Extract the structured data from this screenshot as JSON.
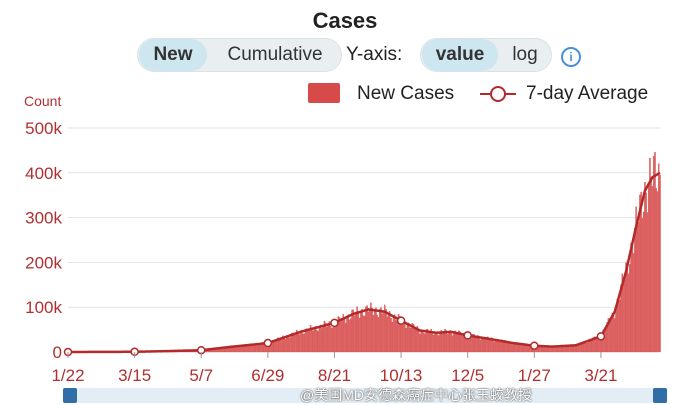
{
  "header": {
    "title": "Cases"
  },
  "controls": {
    "mode_options": [
      "New",
      "Cumulative"
    ],
    "mode_selected": "New",
    "yaxis_label": "Y-axis:",
    "scale_options": [
      "value",
      "log"
    ],
    "scale_selected": "value",
    "info_icon": "info-icon"
  },
  "legend": {
    "bar_label": "New Cases",
    "line_label": "7-day Average"
  },
  "colors": {
    "bar": "#e06666",
    "bar_edge": "#c94040",
    "line": "#b22a2a",
    "axis_text": "#b03030",
    "grid": "#e3e3e3"
  },
  "watermark": "@美国MD安德森癌症中心张玉蛟教授",
  "chart_data": {
    "type": "bar",
    "title": "Cases",
    "ylabel": "Count",
    "ylim": [
      0,
      500000
    ],
    "yticks": [
      0,
      100000,
      200000,
      300000,
      400000,
      500000
    ],
    "ytick_labels": [
      "0",
      "100k",
      "200k",
      "300k",
      "400k",
      "500k"
    ],
    "xtick_labels": [
      "1/22",
      "3/15",
      "5/7",
      "6/29",
      "8/21",
      "10/13",
      "12/5",
      "1/27",
      "3/21"
    ],
    "grid": true,
    "legend_position": "top-right",
    "x_start": "2020-01-22",
    "x_end": "2021-05-07",
    "series": [
      {
        "name": "7-day Average",
        "kind": "line",
        "points": [
          [
            "2020-01-22",
            0
          ],
          [
            "2020-03-15",
            500
          ],
          [
            "2020-04-10",
            2000
          ],
          [
            "2020-05-07",
            4000
          ],
          [
            "2020-06-01",
            12000
          ],
          [
            "2020-06-29",
            20000
          ],
          [
            "2020-07-25",
            45000
          ],
          [
            "2020-08-21",
            65000
          ],
          [
            "2020-09-05",
            85000
          ],
          [
            "2020-09-17",
            95000
          ],
          [
            "2020-09-30",
            90000
          ],
          [
            "2020-10-13",
            70000
          ],
          [
            "2020-10-28",
            48000
          ],
          [
            "2020-11-10",
            43000
          ],
          [
            "2020-11-22",
            45000
          ],
          [
            "2020-12-05",
            37000
          ],
          [
            "2020-12-25",
            28000
          ],
          [
            "2021-01-10",
            20000
          ],
          [
            "2021-01-27",
            14000
          ],
          [
            "2021-02-10",
            12000
          ],
          [
            "2021-03-01",
            15000
          ],
          [
            "2021-03-21",
            35000
          ],
          [
            "2021-04-01",
            90000
          ],
          [
            "2021-04-10",
            180000
          ],
          [
            "2021-04-18",
            280000
          ],
          [
            "2021-04-25",
            360000
          ],
          [
            "2021-05-01",
            390000
          ],
          [
            "2021-05-07",
            400000
          ]
        ]
      },
      {
        "name": "New Cases",
        "kind": "bar",
        "follows": "7-day Average"
      }
    ]
  }
}
